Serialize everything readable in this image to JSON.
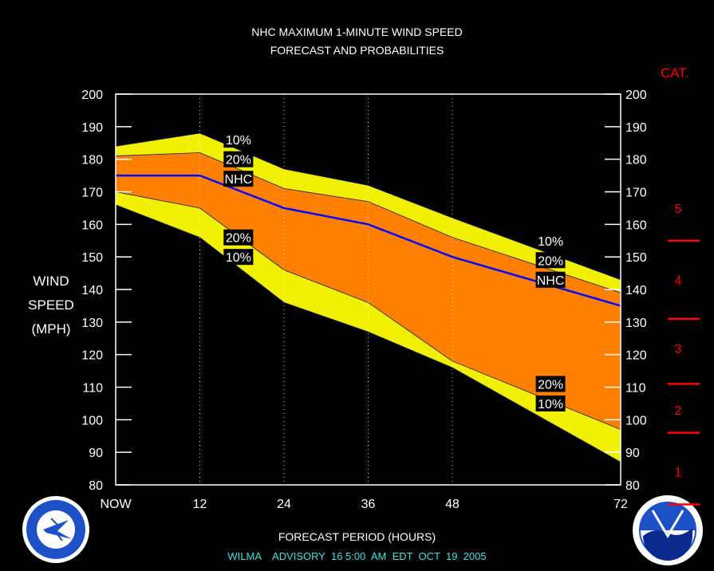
{
  "title_line1": "NHC MAXIMUM 1-MINUTE WIND SPEED",
  "title_line2": "FORECAST AND PROBABILITIES",
  "ylabel_lines": [
    "WIND",
    "SPEED",
    "(MPH)"
  ],
  "xlabel": "FORECAST PERIOD (HOURS)",
  "footer": "WILMA    ADVISORY  16 5:00  AM  EDT  OCT  19  2005",
  "cat_header": "CAT.",
  "colors": {
    "band_outer": "#f0f000",
    "band_inner": "#ff8000",
    "nhc_line": "#0000ff",
    "cat_marks": "#ff0000",
    "footer_text": "#40e0e0"
  },
  "chart_data": {
    "type": "area",
    "x_tick_labels": [
      "NOW",
      "12",
      "24",
      "36",
      "48",
      "72"
    ],
    "x_ticks": [
      0,
      12,
      24,
      36,
      48,
      72
    ],
    "xlim": [
      0,
      72
    ],
    "ylim": [
      80,
      200
    ],
    "y_ticks": [
      80,
      90,
      100,
      110,
      120,
      130,
      140,
      150,
      160,
      170,
      180,
      190,
      200
    ],
    "x": [
      0,
      12,
      24,
      36,
      48,
      72
    ],
    "series": [
      {
        "key": "p10_upper",
        "values": [
          184,
          188,
          177,
          172,
          162,
          143
        ]
      },
      {
        "key": "p20_upper",
        "values": [
          181,
          182,
          171,
          167,
          156,
          139
        ]
      },
      {
        "name": "NHC",
        "values": [
          175,
          175,
          165,
          160,
          150,
          135
        ]
      },
      {
        "key": "p20_lower",
        "values": [
          170,
          165,
          146,
          136,
          118,
          97
        ]
      },
      {
        "key": "p10_lower",
        "values": [
          166,
          156,
          136,
          127,
          116,
          87
        ]
      }
    ],
    "band_labels": [
      {
        "text": "10%",
        "x": 17.5,
        "y": 186
      },
      {
        "text": "20%",
        "x": 17.5,
        "y": 180
      },
      {
        "text": "NHC",
        "x": 17.5,
        "y": 174
      },
      {
        "text": "20%",
        "x": 17.5,
        "y": 156
      },
      {
        "text": "10%",
        "x": 17.5,
        "y": 150
      },
      {
        "text": "10%",
        "x": 62,
        "y": 155
      },
      {
        "text": "20%",
        "x": 62,
        "y": 149
      },
      {
        "text": "NHC",
        "x": 62,
        "y": 143
      },
      {
        "text": "20%",
        "x": 62,
        "y": 111
      },
      {
        "text": "10%",
        "x": 62,
        "y": 105
      }
    ],
    "categories": [
      {
        "label": "1",
        "y": 84
      },
      {
        "label": "2",
        "y": 103
      },
      {
        "label": "3",
        "y": 122
      },
      {
        "label": "4",
        "y": 143
      },
      {
        "label": "5",
        "y": 165
      }
    ],
    "category_thresholds": [
      74,
      96,
      111,
      131,
      155
    ],
    "grid": "vertical-dotted"
  }
}
